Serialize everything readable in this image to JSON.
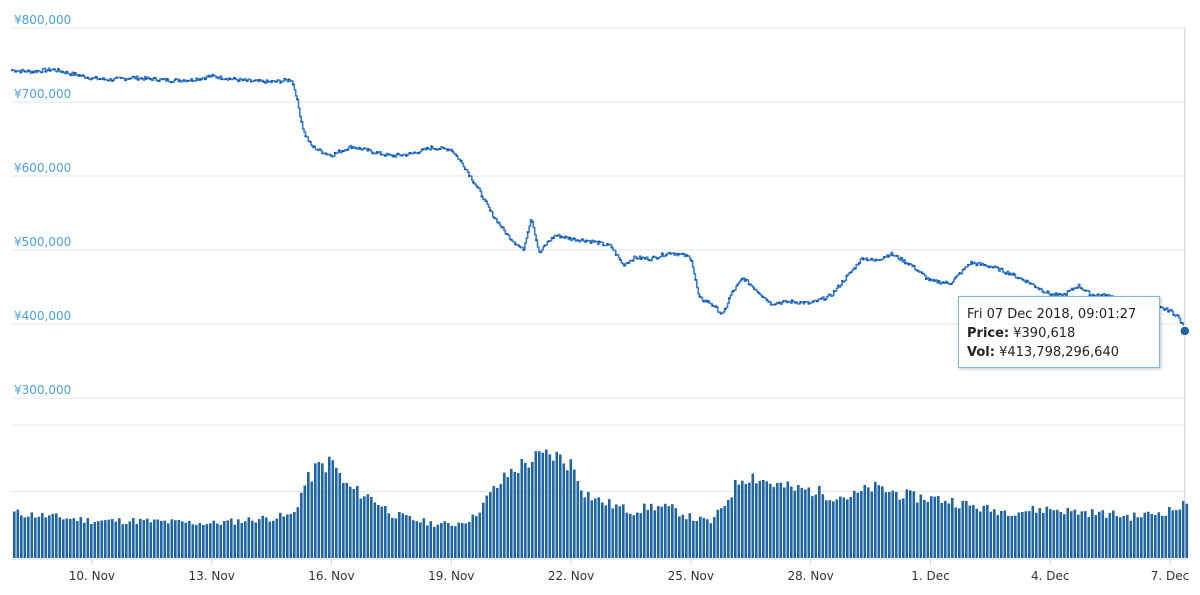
{
  "chart_data": {
    "type": "line",
    "price_axis": {
      "ticks": [
        "¥800,000",
        "¥700,000",
        "¥600,000",
        "¥500,000",
        "¥400,000",
        "¥300,000"
      ],
      "tick_values": [
        800000,
        700000,
        600000,
        500000,
        400000,
        300000
      ],
      "ylim": [
        300000,
        800000
      ]
    },
    "x_axis": {
      "ticks": [
        "10. Nov",
        "13. Nov",
        "16. Nov",
        "19. Nov",
        "22. Nov",
        "25. Nov",
        "28. Nov",
        "1. Dec",
        "4. Dec",
        "7. Dec"
      ],
      "tick_days": [
        10,
        13,
        16,
        19,
        22,
        25,
        28,
        31,
        34,
        37
      ],
      "xlim": [
        8.0,
        37.4
      ]
    },
    "price_series": {
      "x": [
        8.0,
        8.5,
        9.0,
        9.5,
        10.0,
        10.5,
        11.0,
        11.5,
        12.0,
        12.5,
        13.0,
        13.5,
        14.0,
        14.5,
        15.0,
        15.1,
        15.2,
        15.3,
        15.5,
        15.8,
        16.0,
        16.5,
        17.0,
        17.5,
        18.0,
        18.5,
        19.0,
        19.3,
        19.7,
        20.0,
        20.4,
        20.8,
        21.0,
        21.2,
        21.4,
        21.6,
        22.0,
        22.5,
        23.0,
        23.3,
        23.6,
        24.0,
        24.5,
        25.0,
        25.2,
        25.5,
        25.8,
        26.0,
        26.3,
        26.6,
        27.0,
        27.5,
        28.0,
        28.5,
        29.0,
        29.3,
        29.6,
        30.0,
        30.5,
        31.0,
        31.5,
        32.0,
        32.5,
        33.0,
        33.5,
        34.0,
        34.3,
        34.7,
        35.0,
        35.5,
        36.0,
        36.5,
        37.0,
        37.2,
        37.37
      ],
      "y": [
        743000,
        741000,
        744000,
        738000,
        732000,
        730000,
        733000,
        731000,
        729000,
        730000,
        735000,
        731000,
        728000,
        727000,
        730000,
        712000,
        685000,
        660000,
        640000,
        632000,
        628000,
        640000,
        633000,
        627000,
        630000,
        638000,
        636000,
        615000,
        580000,
        550000,
        520000,
        500000,
        545000,
        495000,
        510000,
        520000,
        515000,
        512000,
        505000,
        480000,
        490000,
        488000,
        497000,
        490000,
        435000,
        428000,
        412000,
        440000,
        462000,
        448000,
        428000,
        430000,
        428000,
        438000,
        470000,
        490000,
        485000,
        495000,
        480000,
        458000,
        455000,
        483000,
        478000,
        468000,
        455000,
        440000,
        438000,
        452000,
        440000,
        438000,
        430000,
        425000,
        418000,
        410000,
        390618
      ]
    },
    "volume_series": {
      "x": [
        8.0,
        9.0,
        10.0,
        11.0,
        12.0,
        13.0,
        14.0,
        15.0,
        15.3,
        15.6,
        16.0,
        16.3,
        16.6,
        17.0,
        17.5,
        18.0,
        18.5,
        19.0,
        19.5,
        20.0,
        20.5,
        21.0,
        21.5,
        22.0,
        22.3,
        22.6,
        23.0,
        23.5,
        24.0,
        24.5,
        25.0,
        25.5,
        25.8,
        26.2,
        26.5,
        27.0,
        27.5,
        28.0,
        28.5,
        29.0,
        29.5,
        30.0,
        30.5,
        31.0,
        31.5,
        32.0,
        32.5,
        33.0,
        33.5,
        34.0,
        34.5,
        35.0,
        35.5,
        36.0,
        36.5,
        37.0,
        37.37
      ],
      "y": [
        0.34,
        0.31,
        0.28,
        0.28,
        0.27,
        0.26,
        0.29,
        0.32,
        0.55,
        0.68,
        0.72,
        0.55,
        0.5,
        0.45,
        0.33,
        0.29,
        0.26,
        0.25,
        0.3,
        0.5,
        0.66,
        0.74,
        0.78,
        0.7,
        0.5,
        0.44,
        0.4,
        0.35,
        0.39,
        0.37,
        0.3,
        0.27,
        0.4,
        0.6,
        0.62,
        0.56,
        0.52,
        0.51,
        0.47,
        0.46,
        0.53,
        0.5,
        0.46,
        0.45,
        0.43,
        0.39,
        0.36,
        0.35,
        0.36,
        0.37,
        0.35,
        0.34,
        0.33,
        0.31,
        0.33,
        0.36,
        0.4
      ],
      "ylim": [
        0,
        1
      ]
    },
    "tooltip": {
      "date": "Fri 07 Dec 2018, 09:01:27",
      "price_label": "Price:",
      "price_value": "¥390,618",
      "vol_label": "Vol:",
      "vol_value": "¥413,798,296,640"
    },
    "grid": true,
    "colors": {
      "line": "#2f7ed8",
      "volume": "#1f65a6",
      "axis_label": "#4aa3df",
      "grid": "#e6e6e6",
      "marker": "#1f65a6"
    }
  }
}
